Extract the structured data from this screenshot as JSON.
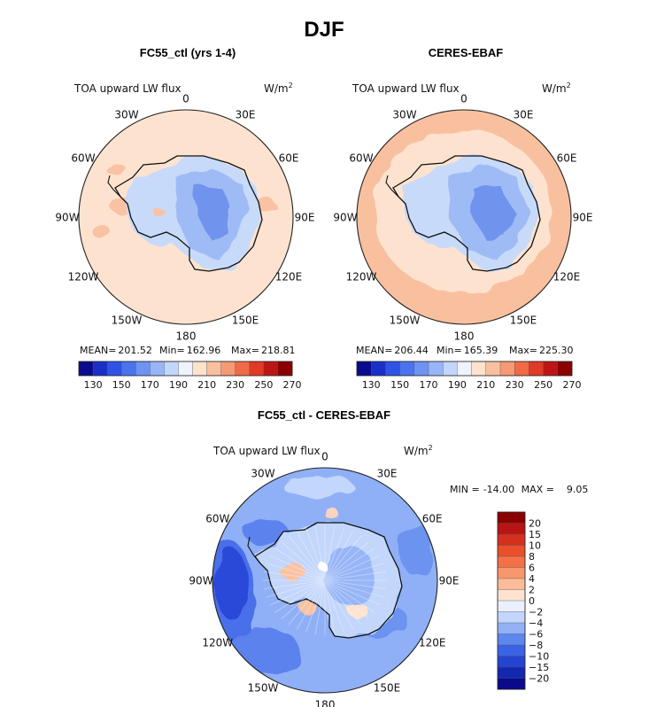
{
  "chart_data": {
    "type": "heatmap",
    "title": "DJF",
    "variable": "TOA upward LW flux",
    "units": "W/m",
    "units_sup": "2",
    "longitude_labels": [
      "0",
      "30E",
      "60E",
      "90E",
      "120E",
      "150E",
      "180",
      "150W",
      "120W",
      "90W",
      "60W",
      "30W"
    ],
    "panels": [
      {
        "id": "model",
        "title": "FC55_ctl (yrs 1-4)",
        "stats": {
          "mean_label": "MEAN=",
          "mean": "201.52",
          "min_label": "Min=",
          "min": "162.96",
          "max_label": "Max=",
          "max": "218.81"
        },
        "colorbar": {
          "labels": [
            "130",
            "150",
            "170",
            "190",
            "210",
            "230",
            "250",
            "270"
          ],
          "colors": [
            "#0a0a8c",
            "#1a2fc8",
            "#2f53e6",
            "#4a73ee",
            "#6d93f3",
            "#97b5f7",
            "#c3d6fb",
            "#eef3fe",
            "#fde2cc",
            "#f9c0a0",
            "#f59a74",
            "#f06a47",
            "#e13a26",
            "#bc1515",
            "#8b0000"
          ]
        }
      },
      {
        "id": "obs",
        "title": "CERES-EBAF",
        "stats": {
          "mean_label": "MEAN=",
          "mean": "206.44",
          "min_label": "Min=",
          "min": "165.39",
          "max_label": "Max=",
          "max": "225.30"
        },
        "colorbar": {
          "labels": [
            "130",
            "150",
            "170",
            "190",
            "210",
            "230",
            "250",
            "270"
          ],
          "colors": [
            "#0a0a8c",
            "#1a2fc8",
            "#2f53e6",
            "#4a73ee",
            "#6d93f3",
            "#97b5f7",
            "#c3d6fb",
            "#eef3fe",
            "#fde2cc",
            "#f9c0a0",
            "#f59a74",
            "#f06a47",
            "#e13a26",
            "#bc1515",
            "#8b0000"
          ]
        }
      },
      {
        "id": "diff",
        "title": "FC55_ctl - CERES-EBAF",
        "stats": {
          "min_label": "MIN =",
          "min": "-14.00",
          "max_label": "MAX =",
          "max": "9.05"
        },
        "colorbar": {
          "labels": [
            "20",
            "15",
            "10",
            "8",
            "6",
            "4",
            "2",
            "0",
            "−2",
            "−4",
            "−6",
            "−8",
            "−10",
            "−15",
            "−20"
          ],
          "colors": [
            "#8b0000",
            "#b81414",
            "#d5301e",
            "#ea4f2b",
            "#f47148",
            "#f8966e",
            "#fbbc9a",
            "#fde3d0",
            "#eaf0fd",
            "#c3d5fb",
            "#92b1f6",
            "#5d86ee",
            "#3a63e6",
            "#2444d2",
            "#1328b0",
            "#0a0a8c"
          ]
        }
      }
    ]
  }
}
